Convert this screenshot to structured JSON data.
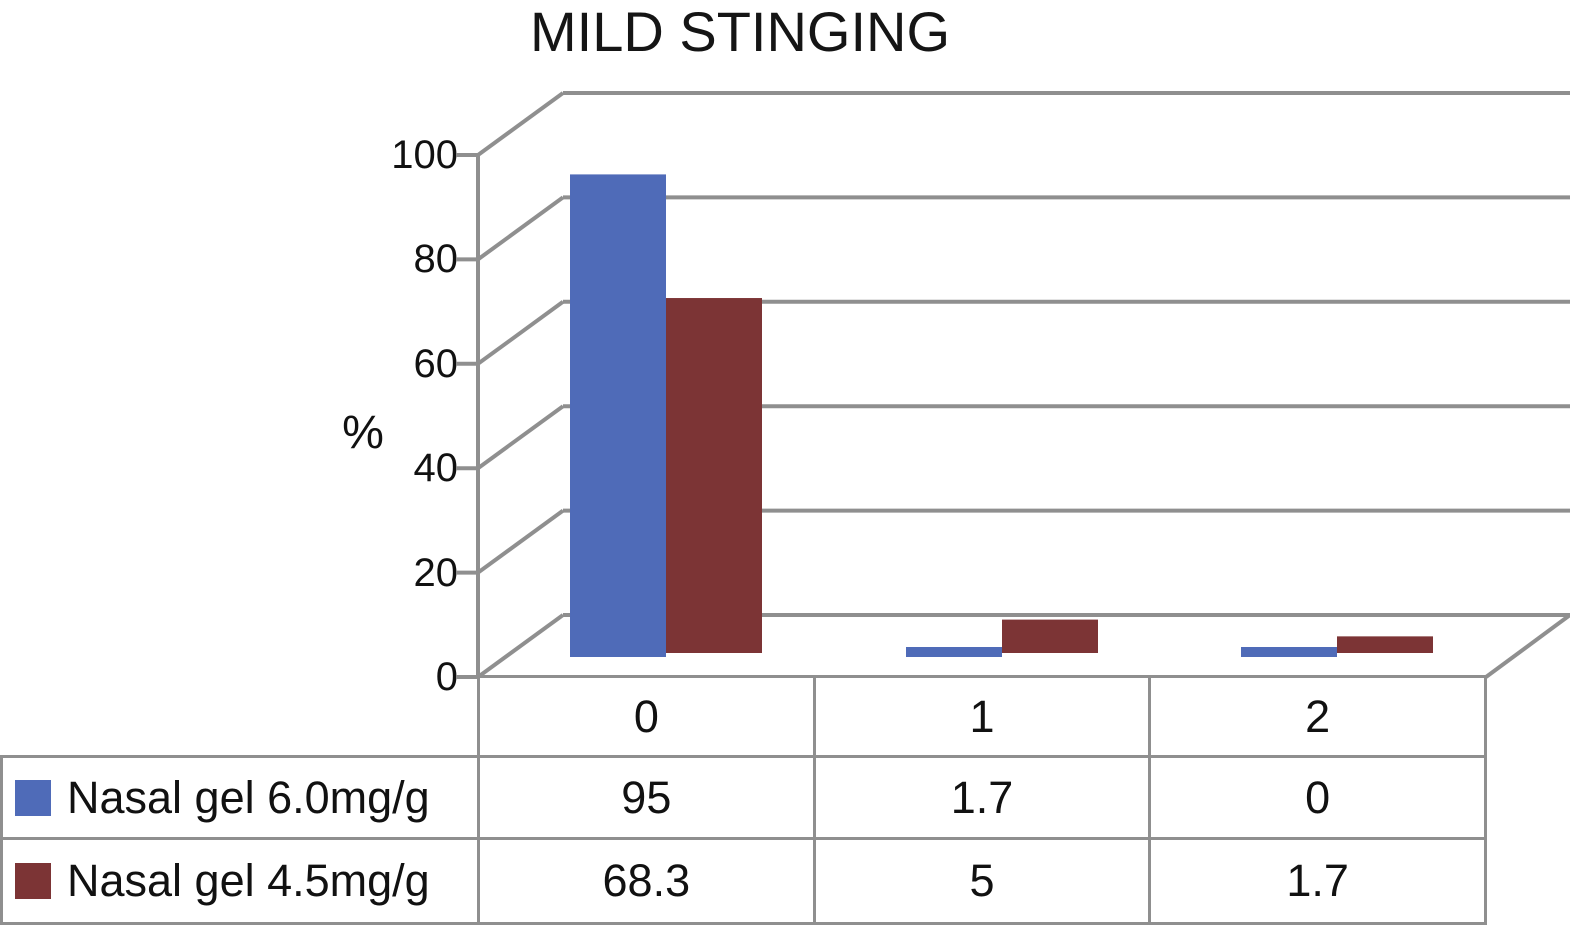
{
  "chart_data": {
    "type": "bar",
    "style": "3d",
    "title": "MILD STINGING",
    "ylabel": "%",
    "xlabel": "",
    "categories": [
      "0",
      "1",
      "2"
    ],
    "series": [
      {
        "name": "Nasal gel 6.0mg/g",
        "color": "#4F6BB8",
        "values": [
          95,
          1.7,
          0
        ],
        "values_display": [
          "95",
          "1.7",
          "0"
        ]
      },
      {
        "name": "Nasal gel 4.5mg/g",
        "color": "#7C3435",
        "values": [
          68.3,
          5,
          1.7
        ],
        "values_display": [
          "68.3",
          "5",
          "1.7"
        ]
      }
    ],
    "yticks": [
      "0",
      "20",
      "40",
      "60",
      "80",
      "100"
    ],
    "ylim": [
      0,
      100
    ],
    "grid": true,
    "legend_position": "table-left"
  },
  "colors": {
    "grid": "#8f8f8f",
    "text": "#111111",
    "background": "#ffffff"
  }
}
